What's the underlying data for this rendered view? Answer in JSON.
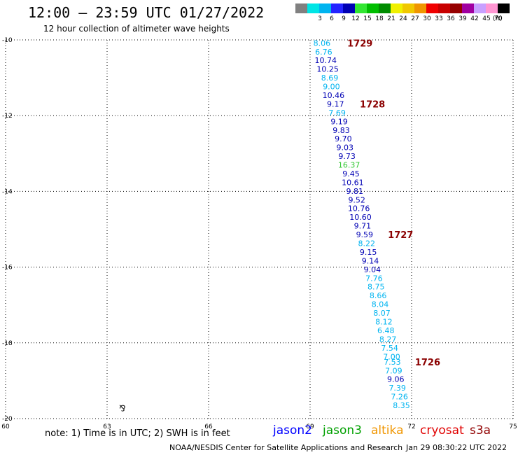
{
  "header": {
    "title": "12:00 – 23:59 UTC 01/27/2022",
    "subtitle": "12 hour collection of altimeter wave heights"
  },
  "legend": {
    "items": [
      {
        "label": "",
        "color": "#808080"
      },
      {
        "label": "3",
        "color": "#00e5e5"
      },
      {
        "label": "6",
        "color": "#00b4f0"
      },
      {
        "label": "9",
        "color": "#2424ff"
      },
      {
        "label": "12",
        "color": "#0000b4"
      },
      {
        "label": "15",
        "color": "#32e632"
      },
      {
        "label": "18",
        "color": "#00be00"
      },
      {
        "label": "21",
        "color": "#008c00"
      },
      {
        "label": "24",
        "color": "#f0f000"
      },
      {
        "label": "27",
        "color": "#f0c800"
      },
      {
        "label": "30",
        "color": "#f09600"
      },
      {
        "label": "33",
        "color": "#f00000"
      },
      {
        "label": "36",
        "color": "#c80000"
      },
      {
        "label": "39",
        "color": "#960000"
      },
      {
        "label": "42",
        "color": "#a000a0"
      },
      {
        "label": "45",
        "color": "#c8a0ff"
      },
      {
        "label": "70",
        "color": "#ff96d2"
      },
      {
        "label": "",
        "color": "#000000"
      }
    ],
    "unit": "(ft)"
  },
  "note": "note:  1) Time is in UTC;  2) SWH is in feet",
  "satellites": [
    {
      "name": "jason2",
      "color": "#0000ff"
    },
    {
      "name": "jason3",
      "color": "#00a000"
    },
    {
      "name": "altika",
      "color": "#f09600"
    },
    {
      "name": "cryosat",
      "color": "#e00000"
    },
    {
      "name": "s3a",
      "color": "#900000"
    }
  ],
  "footer": {
    "credit": "NOAA/NESDIS Center for Satellite Applications and Research",
    "generated": "Jan 29 08:30:22 UTC 2022"
  },
  "chart_data": {
    "type": "scatter",
    "xlim": [
      60,
      75
    ],
    "ylim": [
      -20,
      -10
    ],
    "x_ticks": [
      "60",
      "63",
      "66",
      "69",
      "72",
      "75"
    ],
    "y_ticks": [
      "-10",
      "-12",
      "-14",
      "-16",
      "-18",
      "-20"
    ],
    "grid": true,
    "swh_points": [
      {
        "x": 69.35,
        "y": -10.08,
        "v": "8.06",
        "color": "#00b4f0"
      },
      {
        "x": 69.4,
        "y": -10.31,
        "v": "6.76",
        "color": "#00b4f0"
      },
      {
        "x": 69.46,
        "y": -10.54,
        "v": "10.74",
        "color": "#0000b4"
      },
      {
        "x": 69.52,
        "y": -10.77,
        "v": "10.25",
        "color": "#0000b4"
      },
      {
        "x": 69.58,
        "y": -11.0,
        "v": "8.69",
        "color": "#00b4f0"
      },
      {
        "x": 69.63,
        "y": -11.23,
        "v": "9.00",
        "color": "#00b4f0"
      },
      {
        "x": 69.69,
        "y": -11.46,
        "v": "10.46",
        "color": "#0000b4"
      },
      {
        "x": 69.75,
        "y": -11.69,
        "v": "9.17",
        "color": "#0000b4"
      },
      {
        "x": 69.8,
        "y": -11.92,
        "v": "7.69",
        "color": "#00b4f0"
      },
      {
        "x": 69.86,
        "y": -12.15,
        "v": "9.19",
        "color": "#0000b4"
      },
      {
        "x": 69.92,
        "y": -12.38,
        "v": "9.83",
        "color": "#0000b4"
      },
      {
        "x": 69.98,
        "y": -12.61,
        "v": "9.70",
        "color": "#0000b4"
      },
      {
        "x": 70.03,
        "y": -12.84,
        "v": "9.03",
        "color": "#0000b4"
      },
      {
        "x": 70.09,
        "y": -13.07,
        "v": "9.73",
        "color": "#0000b4"
      },
      {
        "x": 70.15,
        "y": -13.3,
        "v": "16.37",
        "color": "#32c832"
      },
      {
        "x": 70.21,
        "y": -13.53,
        "v": "9.45",
        "color": "#0000b4"
      },
      {
        "x": 70.26,
        "y": -13.76,
        "v": "10.61",
        "color": "#0000b4"
      },
      {
        "x": 70.32,
        "y": -13.99,
        "v": "9.81",
        "color": "#0000b4"
      },
      {
        "x": 70.38,
        "y": -14.22,
        "v": "9.52",
        "color": "#0000b4"
      },
      {
        "x": 70.44,
        "y": -14.45,
        "v": "10.76",
        "color": "#0000b4"
      },
      {
        "x": 70.49,
        "y": -14.68,
        "v": "10.60",
        "color": "#0000b4"
      },
      {
        "x": 70.55,
        "y": -14.91,
        "v": "9.71",
        "color": "#0000b4"
      },
      {
        "x": 70.61,
        "y": -15.14,
        "v": "9.59",
        "color": "#0000b4"
      },
      {
        "x": 70.67,
        "y": -15.37,
        "v": "8.22",
        "color": "#00b4f0"
      },
      {
        "x": 70.72,
        "y": -15.6,
        "v": "9.15",
        "color": "#0000b4"
      },
      {
        "x": 70.78,
        "y": -15.83,
        "v": "9.14",
        "color": "#0000b4"
      },
      {
        "x": 70.84,
        "y": -16.06,
        "v": "9.04",
        "color": "#0000b4"
      },
      {
        "x": 70.89,
        "y": -16.29,
        "v": "7.76",
        "color": "#00b4f0"
      },
      {
        "x": 70.95,
        "y": -16.52,
        "v": "8.75",
        "color": "#00b4f0"
      },
      {
        "x": 71.01,
        "y": -16.75,
        "v": "8.66",
        "color": "#00b4f0"
      },
      {
        "x": 71.07,
        "y": -16.98,
        "v": "8.04",
        "color": "#00b4f0"
      },
      {
        "x": 71.12,
        "y": -17.21,
        "v": "8.07",
        "color": "#00b4f0"
      },
      {
        "x": 71.18,
        "y": -17.44,
        "v": "8.12",
        "color": "#00b4f0"
      },
      {
        "x": 71.24,
        "y": -17.67,
        "v": "6.48",
        "color": "#00b4f0"
      },
      {
        "x": 71.3,
        "y": -17.9,
        "v": "8.27",
        "color": "#00b4f0"
      },
      {
        "x": 71.35,
        "y": -18.13,
        "v": "7.54",
        "color": "#00b4f0"
      },
      {
        "x": 71.41,
        "y": -18.36,
        "v": "7.00",
        "color": "#00b4f0"
      },
      {
        "x": 71.43,
        "y": -18.5,
        "v": "7.53",
        "color": "#00b4f0"
      },
      {
        "x": 71.47,
        "y": -18.73,
        "v": "7.09",
        "color": "#00b4f0"
      },
      {
        "x": 71.53,
        "y": -18.96,
        "v": "9.06",
        "color": "#0000b4"
      },
      {
        "x": 71.58,
        "y": -19.19,
        "v": "7.39",
        "color": "#00b4f0"
      },
      {
        "x": 71.64,
        "y": -19.42,
        "v": "7.26",
        "color": "#00b4f0"
      },
      {
        "x": 71.7,
        "y": -19.65,
        "v": "8.35",
        "color": "#00b4f0"
      }
    ],
    "time_labels": [
      {
        "x": 70.1,
        "y": -10.08,
        "v": "1729",
        "color": "#8b0000"
      },
      {
        "x": 70.47,
        "y": -11.69,
        "v": "1728",
        "color": "#8b0000"
      },
      {
        "x": 71.3,
        "y": -15.14,
        "v": "1727",
        "color": "#8b0000"
      },
      {
        "x": 72.1,
        "y": -18.5,
        "v": "1726",
        "color": "#8b0000"
      }
    ],
    "island": {
      "x": 63.45,
      "y": -19.73,
      "glyph": "⅋"
    }
  }
}
